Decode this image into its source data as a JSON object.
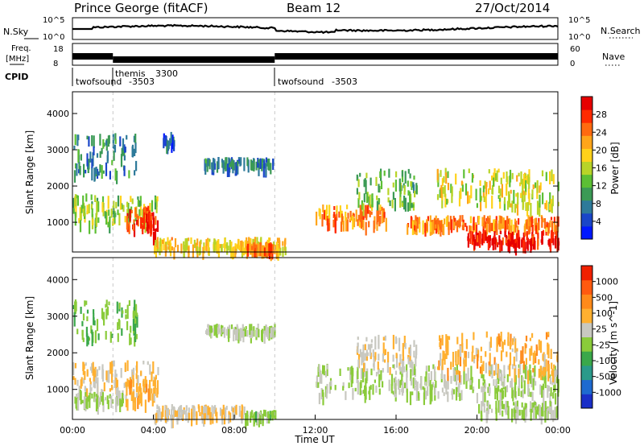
{
  "header": {
    "station": "Prince George (fitACF)",
    "beam": "Beam 12",
    "date": "27/Oct/2014"
  },
  "top_panels": {
    "nsky_label": "N.Sky",
    "nsky_ticks": [
      "10^5",
      "10^0"
    ],
    "nsearch_label": "N.Search",
    "nsearch_ticks": [
      "10^5",
      "10^0"
    ],
    "freq_label": "Freq.",
    "freq_unit": "[MHz]",
    "freq_ticks": [
      "18",
      "8"
    ],
    "nave_label": "Nave",
    "nave_ticks": [
      "60",
      "0"
    ],
    "cpid_label": "CPID",
    "cpid_entries": [
      {
        "name": "twofsound",
        "id": "-3503",
        "start_hour": 0.0
      },
      {
        "name": "themis",
        "id": "3300",
        "start_hour": 2.0
      },
      {
        "name": "twofsound",
        "id": "-3503",
        "start_hour": 10.0
      }
    ]
  },
  "colors": {
    "power_scale": [
      "#0018ff",
      "#1a46c8",
      "#2e7a9a",
      "#3b9a55",
      "#5cbf34",
      "#b8d428",
      "#ffd21a",
      "#ffa51a",
      "#ff6a10",
      "#ff2a00",
      "#e60000"
    ],
    "velocity_scale": [
      "#1a2fc8",
      "#1e6ad0",
      "#2a9a8a",
      "#3aa84a",
      "#8acb3a",
      "#c8c8c0",
      "#ffb030",
      "#ff8a1a",
      "#ff5a10",
      "#f02000"
    ],
    "ground_scatter": "#c8c8c0"
  },
  "chart_data": [
    {
      "type": "heatmap",
      "title": "Power",
      "xlabel": "Time UT",
      "ylabel": "Slant Range [km]",
      "xlim": [
        0,
        24
      ],
      "ylim": [
        180,
        4600
      ],
      "x_ticks": [
        "00:00",
        "04:00",
        "08:00",
        "12:00",
        "16:00",
        "20:00",
        "00:00"
      ],
      "y_ticks": [
        "1000",
        "2000",
        "3000",
        "4000"
      ],
      "colorbar_label": "Power [dB]",
      "colorbar_ticks": [
        "4",
        "8",
        "12",
        "16",
        "20",
        "24",
        "28"
      ],
      "colorbar_range": [
        0,
        30
      ],
      "regions": [
        {
          "t": [
            0.0,
            4.2
          ],
          "r": [
            1000,
            1800
          ],
          "value": 14
        },
        {
          "t": [
            2.6,
            4.0
          ],
          "r": [
            900,
            1500
          ],
          "value": 26
        },
        {
          "t": [
            3.6,
            4.2
          ],
          "r": [
            700,
            1300
          ],
          "value": 28
        },
        {
          "t": [
            0.0,
            3.2
          ],
          "r": [
            2400,
            3500
          ],
          "value": 8
        },
        {
          "t": [
            4.4,
            5.0
          ],
          "r": [
            3200,
            3500
          ],
          "value": 6
        },
        {
          "t": [
            6.5,
            10.0
          ],
          "r": [
            2600,
            2800
          ],
          "value": 7
        },
        {
          "t": [
            4.0,
            10.5
          ],
          "r": [
            300,
            600
          ],
          "value": 18
        },
        {
          "t": [
            8.5,
            10.0
          ],
          "r": [
            300,
            450
          ],
          "value": 24
        },
        {
          "t": [
            12.0,
            15.5
          ],
          "r": [
            1000,
            1500
          ],
          "value": 22
        },
        {
          "t": [
            14.0,
            17.0
          ],
          "r": [
            1500,
            2500
          ],
          "value": 12
        },
        {
          "t": [
            16.5,
            24.0
          ],
          "r": [
            900,
            1200
          ],
          "value": 22
        },
        {
          "t": [
            19.5,
            24.0
          ],
          "r": [
            450,
            800
          ],
          "value": 28
        },
        {
          "t": [
            18.0,
            24.0
          ],
          "r": [
            1500,
            2500
          ],
          "value": 16
        }
      ]
    },
    {
      "type": "heatmap",
      "title": "Velocity",
      "xlabel": "Time UT",
      "ylabel": "Slant Range [km]",
      "xlim": [
        0,
        24
      ],
      "ylim": [
        180,
        4600
      ],
      "x_ticks": [
        "00:00",
        "04:00",
        "08:00",
        "12:00",
        "16:00",
        "20:00",
        "00:00"
      ],
      "y_ticks": [
        "1000",
        "2000",
        "3000",
        "4000"
      ],
      "colorbar_label": "Velocity [m s^-1]",
      "colorbar_ticks": [
        "1000",
        "500",
        "100",
        "25",
        "-25",
        "-100",
        "-500",
        "-1000"
      ],
      "colorbar_range": [
        -1000,
        1000
      ],
      "regions": [
        {
          "t": [
            0.0,
            4.2
          ],
          "r": [
            1000,
            1800
          ],
          "value": -200
        },
        {
          "t": [
            0.0,
            2.5
          ],
          "r": [
            700,
            1000
          ],
          "value": 0
        },
        {
          "t": [
            2.6,
            4.2
          ],
          "r": [
            700,
            1300
          ],
          "value": -300
        },
        {
          "t": [
            0.0,
            3.2
          ],
          "r": [
            2400,
            3500
          ],
          "value": 150
        },
        {
          "t": [
            6.5,
            10.0
          ],
          "r": [
            2600,
            2800
          ],
          "value": 0
        },
        {
          "t": [
            4.0,
            8.5
          ],
          "r": [
            300,
            600
          ],
          "value": -150
        },
        {
          "t": [
            8.5,
            10.0
          ],
          "r": [
            300,
            450
          ],
          "value": 90
        },
        {
          "t": [
            12.0,
            24.0
          ],
          "r": [
            900,
            1700
          ],
          "value": 0
        },
        {
          "t": [
            14.0,
            17.0
          ],
          "r": [
            1600,
            2500
          ],
          "value": -150
        },
        {
          "t": [
            18.0,
            24.0
          ],
          "r": [
            1500,
            2600
          ],
          "value": -300
        },
        {
          "t": [
            20.0,
            24.0
          ],
          "r": [
            400,
            700
          ],
          "value": 0
        }
      ]
    }
  ]
}
